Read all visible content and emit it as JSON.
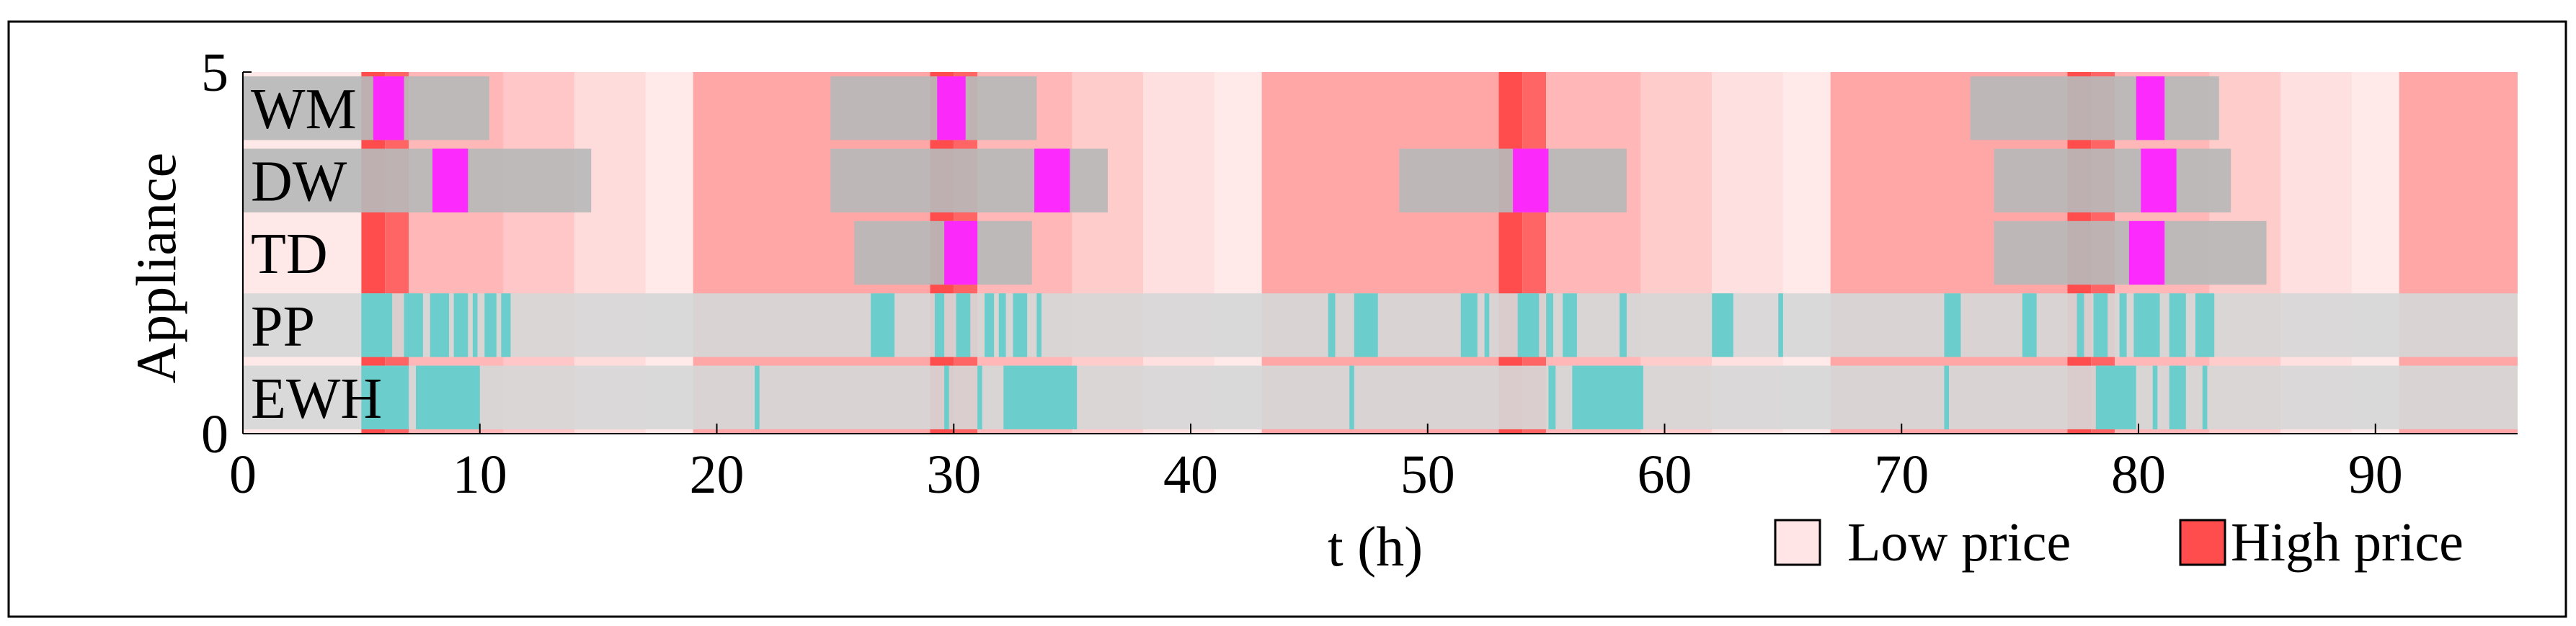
{
  "chart_data": {
    "type": "gantt",
    "title": "",
    "xlabel": "t (h)",
    "ylabel": "Appliance",
    "xlim": [
      0,
      96
    ],
    "ylim": [
      0,
      5
    ],
    "x_ticks": [
      0,
      10,
      20,
      30,
      40,
      50,
      60,
      70,
      80,
      90
    ],
    "y_ticks": [
      0,
      5
    ],
    "appliances": [
      "WM",
      "DW",
      "TD",
      "PP",
      "EWH"
    ],
    "price_background": [
      {
        "start": 0.0,
        "end": 5.0,
        "level": 0.05
      },
      {
        "start": 5.0,
        "end": 6.0,
        "level": 1.0
      },
      {
        "start": 6.0,
        "end": 7.0,
        "level": 0.85
      },
      {
        "start": 7.0,
        "end": 11.0,
        "level": 0.35
      },
      {
        "start": 11.0,
        "end": 14.0,
        "level": 0.25
      },
      {
        "start": 14.0,
        "end": 17.0,
        "level": 0.12
      },
      {
        "start": 17.0,
        "end": 19.0,
        "level": 0.04
      },
      {
        "start": 19.0,
        "end": 29.0,
        "level": 0.45
      },
      {
        "start": 29.0,
        "end": 30.0,
        "level": 1.0
      },
      {
        "start": 30.0,
        "end": 31.0,
        "level": 0.85
      },
      {
        "start": 31.0,
        "end": 35.0,
        "level": 0.35
      },
      {
        "start": 35.0,
        "end": 38.0,
        "level": 0.22
      },
      {
        "start": 38.0,
        "end": 41.0,
        "level": 0.1
      },
      {
        "start": 41.0,
        "end": 43.0,
        "level": 0.04
      },
      {
        "start": 43.0,
        "end": 53.0,
        "level": 0.45
      },
      {
        "start": 53.0,
        "end": 54.0,
        "level": 1.0
      },
      {
        "start": 54.0,
        "end": 55.0,
        "level": 0.85
      },
      {
        "start": 55.0,
        "end": 59.0,
        "level": 0.35
      },
      {
        "start": 59.0,
        "end": 62.0,
        "level": 0.22
      },
      {
        "start": 62.0,
        "end": 65.0,
        "level": 0.1
      },
      {
        "start": 65.0,
        "end": 67.0,
        "level": 0.04
      },
      {
        "start": 67.0,
        "end": 77.0,
        "level": 0.45
      },
      {
        "start": 77.0,
        "end": 78.0,
        "level": 1.0
      },
      {
        "start": 78.0,
        "end": 79.0,
        "level": 0.85
      },
      {
        "start": 79.0,
        "end": 83.0,
        "level": 0.35
      },
      {
        "start": 83.0,
        "end": 86.0,
        "level": 0.22
      },
      {
        "start": 86.0,
        "end": 89.0,
        "level": 0.1
      },
      {
        "start": 89.0,
        "end": 91.0,
        "level": 0.04
      },
      {
        "start": 91.0,
        "end": 96.0,
        "level": 0.45
      }
    ],
    "series": [
      {
        "name": "EWH",
        "window_color": "#d7d7d7",
        "windows": [
          [
            0.0,
            96.0
          ]
        ],
        "run_color": "#66cccc",
        "runs": [
          [
            5.0,
            7.0
          ],
          [
            7.3,
            10.0
          ],
          [
            21.6,
            21.8
          ],
          [
            29.6,
            29.8
          ],
          [
            31.0,
            31.2
          ],
          [
            32.1,
            35.2
          ],
          [
            46.7,
            46.9
          ],
          [
            55.1,
            55.4
          ],
          [
            56.1,
            59.1
          ],
          [
            71.8,
            72.0
          ],
          [
            78.2,
            79.9
          ],
          [
            80.6,
            80.8
          ],
          [
            81.3,
            82.0
          ],
          [
            82.7,
            82.9
          ]
        ]
      },
      {
        "name": "PP",
        "window_color": "#d7d7d7",
        "windows": [
          [
            0.0,
            96.0
          ]
        ],
        "run_color": "#66cccc",
        "runs": [
          [
            5.0,
            6.3
          ],
          [
            6.8,
            7.6
          ],
          [
            7.9,
            8.7
          ],
          [
            8.9,
            9.5
          ],
          [
            9.7,
            9.9
          ],
          [
            10.2,
            10.7
          ],
          [
            10.9,
            11.3
          ],
          [
            26.5,
            27.5
          ],
          [
            29.2,
            29.6
          ],
          [
            30.1,
            30.7
          ],
          [
            31.3,
            31.7
          ],
          [
            31.9,
            32.2
          ],
          [
            32.5,
            33.1
          ],
          [
            33.5,
            33.7
          ],
          [
            45.8,
            46.1
          ],
          [
            46.9,
            47.9
          ],
          [
            51.4,
            52.1
          ],
          [
            52.4,
            52.6
          ],
          [
            53.8,
            54.7
          ],
          [
            55.0,
            55.3
          ],
          [
            55.7,
            56.3
          ],
          [
            58.1,
            58.4
          ],
          [
            62.0,
            62.9
          ],
          [
            64.8,
            65.0
          ],
          [
            71.8,
            72.5
          ],
          [
            75.1,
            75.7
          ],
          [
            77.4,
            77.7
          ],
          [
            78.1,
            78.7
          ],
          [
            79.2,
            79.5
          ],
          [
            79.8,
            80.9
          ],
          [
            81.3,
            82.0
          ],
          [
            82.4,
            83.2
          ]
        ]
      },
      {
        "name": "TD",
        "window_color": "#b9b9b9",
        "windows": [
          [
            25.8,
            33.3
          ],
          [
            73.9,
            85.4
          ]
        ],
        "run_color": "#ff22ff",
        "runs": [
          [
            29.6,
            31.0
          ],
          [
            79.6,
            81.1
          ]
        ]
      },
      {
        "name": "DW",
        "window_color": "#b9b9b9",
        "windows": [
          [
            0.0,
            14.7
          ],
          [
            24.8,
            36.5
          ],
          [
            48.8,
            58.4
          ],
          [
            73.9,
            83.9
          ]
        ],
        "run_color": "#ff22ff",
        "runs": [
          [
            8.0,
            9.5
          ],
          [
            33.4,
            34.9
          ],
          [
            53.6,
            55.1
          ],
          [
            80.1,
            81.6
          ]
        ]
      },
      {
        "name": "WM",
        "window_color": "#b9b9b9",
        "windows": [
          [
            0.0,
            10.4
          ],
          [
            24.8,
            33.5
          ],
          [
            72.9,
            83.4
          ]
        ],
        "run_color": "#ff22ff",
        "runs": [
          [
            5.5,
            6.8
          ],
          [
            29.3,
            30.5
          ],
          [
            79.9,
            81.1
          ]
        ]
      }
    ],
    "legend": [
      {
        "label": "Low price",
        "color": "#ffe5e5"
      },
      {
        "label": "High price",
        "color": "#ff4d4d"
      }
    ],
    "legend_position": "bottom-right"
  }
}
